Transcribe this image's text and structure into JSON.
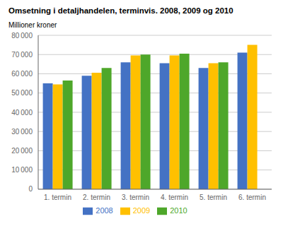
{
  "chart_data": {
    "type": "bar",
    "title": "Omsetning i detaljhandelen, terminvis. 2008, 2009 og 2010",
    "ylabel": "Millioner kroner",
    "categories": [
      "1. termin",
      "2. termin",
      "3. termin",
      "4. termin",
      "5. termin",
      "6. termin"
    ],
    "series": [
      {
        "name": "2008",
        "color": "#4472C4",
        "values": [
          55000,
          59000,
          66000,
          65500,
          63000,
          71000
        ]
      },
      {
        "name": "2009",
        "color": "#FFC000",
        "values": [
          54500,
          60500,
          69500,
          69500,
          65500,
          75000
        ]
      },
      {
        "name": "2010",
        "color": "#4EA72A",
        "values": [
          56500,
          63000,
          70000,
          70500,
          66000,
          null
        ]
      }
    ],
    "ylim": [
      0,
      80000
    ],
    "yticks": [
      0,
      {
        "value": 10000,
        "label": "10 000"
      },
      {
        "value": 20000,
        "label": "20 000"
      },
      {
        "value": 30000,
        "label": "30 000"
      },
      {
        "value": 40000,
        "label": "40 000"
      },
      {
        "value": 50000,
        "label": "50 000"
      },
      {
        "value": 60000,
        "label": "60 000"
      },
      {
        "value": 70000,
        "label": "70 000"
      },
      {
        "value": 80000,
        "label": "80 000"
      }
    ],
    "grid": true,
    "legend": "bottom"
  }
}
